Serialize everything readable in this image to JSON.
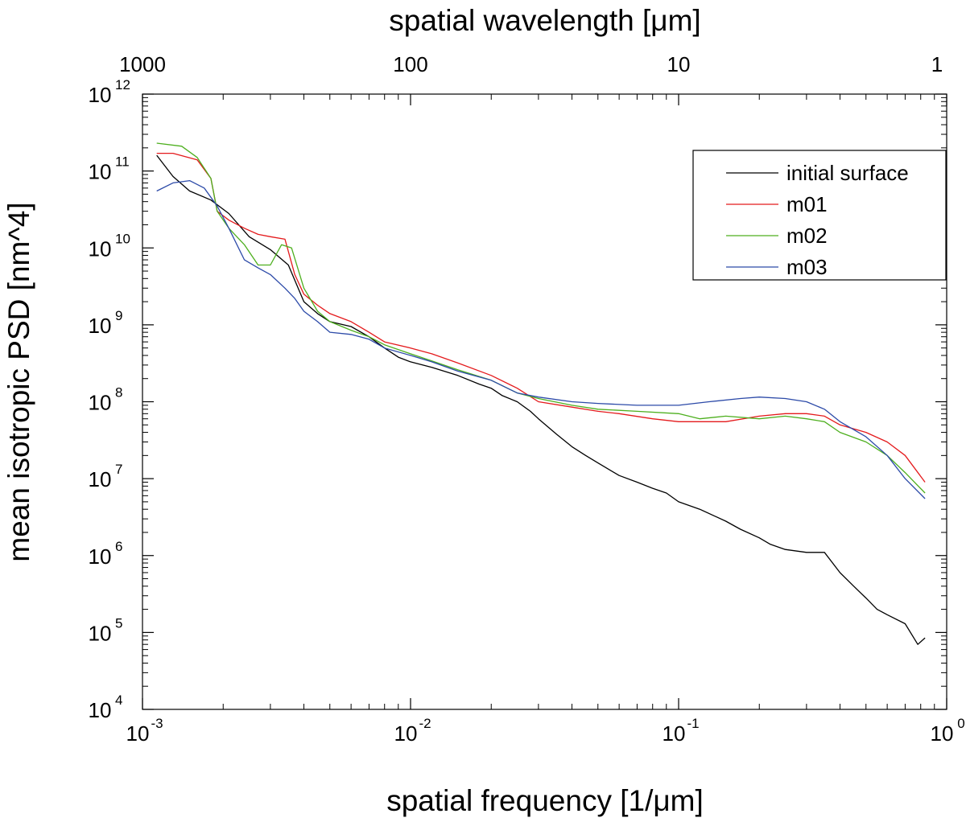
{
  "chart_data": {
    "type": "line",
    "xscale": "log",
    "yscale": "log",
    "xlabel": "spatial frequency [1/μm]",
    "ylabel": "mean isotropic PSD [nm^4]",
    "top_xlabel": "spatial wavelength [μm]",
    "xlim": [
      0.001,
      1
    ],
    "ylim": [
      10000,
      1000000000000
    ],
    "x_ticks": [
      {
        "value": 0.001,
        "base": "10",
        "exp": "-3"
      },
      {
        "value": 0.01,
        "base": "10",
        "exp": "-2"
      },
      {
        "value": 0.1,
        "base": "10",
        "exp": "-1"
      },
      {
        "value": 1,
        "base": "10",
        "exp": "0"
      }
    ],
    "y_ticks": [
      {
        "value": 10000,
        "base": "10",
        "exp": "4"
      },
      {
        "value": 100000,
        "base": "10",
        "exp": "5"
      },
      {
        "value": 1000000,
        "base": "10",
        "exp": "6"
      },
      {
        "value": 10000000,
        "base": "10",
        "exp": "7"
      },
      {
        "value": 100000000,
        "base": "10",
        "exp": "8"
      },
      {
        "value": 1000000000,
        "base": "10",
        "exp": "9"
      },
      {
        "value": 10000000000,
        "base": "10",
        "exp": "10"
      },
      {
        "value": 100000000000,
        "base": "10",
        "exp": "11"
      },
      {
        "value": 1000000000000,
        "base": "10",
        "exp": "12"
      }
    ],
    "top_ticks": [
      {
        "value": 0.001,
        "label": "1000"
      },
      {
        "value": 0.01,
        "label": "100"
      },
      {
        "value": 0.1,
        "label": "10"
      },
      {
        "value": 1,
        "label": "1"
      }
    ],
    "legend_position": "top-right",
    "series": [
      {
        "name": "initial surface",
        "color": "#000000",
        "x": [
          0.00113,
          0.0013,
          0.0015,
          0.0018,
          0.0021,
          0.0025,
          0.003,
          0.0035,
          0.004,
          0.0045,
          0.005,
          0.006,
          0.007,
          0.008,
          0.009,
          0.01,
          0.012,
          0.015,
          0.018,
          0.02,
          0.022,
          0.025,
          0.028,
          0.03,
          0.035,
          0.04,
          0.045,
          0.05,
          0.06,
          0.07,
          0.08,
          0.09,
          0.1,
          0.12,
          0.15,
          0.17,
          0.2,
          0.22,
          0.25,
          0.3,
          0.35,
          0.4,
          0.45,
          0.5,
          0.55,
          0.6,
          0.7,
          0.78,
          0.83
        ],
        "values": [
          160000000000,
          85000000000,
          55000000000,
          42000000000,
          28000000000,
          14000000000,
          9500000000,
          6000000000,
          2000000000,
          1400000000,
          1100000000,
          950000000,
          700000000,
          500000000,
          380000000,
          330000000,
          280000000,
          220000000,
          170000000,
          150000000,
          120000000,
          100000000,
          75000000,
          60000000,
          38000000,
          26000000,
          20000000,
          16000000,
          11000000,
          9000000,
          7500000,
          6500000,
          5000000,
          4000000,
          2800000,
          2200000,
          1700000,
          1400000,
          1200000,
          1100000,
          1100000,
          600000,
          400000,
          280000,
          200000,
          170000,
          130000,
          70000,
          85000
        ]
      },
      {
        "name": "m01",
        "color": "#e41a1c",
        "x": [
          0.00113,
          0.0013,
          0.0016,
          0.0018,
          0.0019,
          0.0021,
          0.0024,
          0.0027,
          0.003,
          0.0034,
          0.0037,
          0.004,
          0.0045,
          0.005,
          0.006,
          0.007,
          0.008,
          0.01,
          0.012,
          0.015,
          0.02,
          0.025,
          0.03,
          0.04,
          0.05,
          0.06,
          0.08,
          0.1,
          0.12,
          0.15,
          0.2,
          0.25,
          0.3,
          0.35,
          0.4,
          0.5,
          0.6,
          0.7,
          0.83
        ],
        "values": [
          170000000000,
          170000000000,
          140000000000,
          80000000000,
          30000000000,
          23000000000,
          18000000000,
          15000000000,
          14000000000,
          13000000000,
          4500000000,
          2500000000,
          1800000000,
          1400000000,
          1100000000,
          800000000,
          600000000,
          500000000,
          420000000,
          320000000,
          220000000,
          150000000,
          100000000,
          85000000,
          75000000,
          70000000,
          60000000,
          55000000,
          55000000,
          55000000,
          65000000,
          70000000,
          70000000,
          65000000,
          50000000,
          40000000,
          30000000,
          20000000,
          9000000
        ]
      },
      {
        "name": "m02",
        "color": "#4daf1e",
        "x": [
          0.00113,
          0.0014,
          0.0016,
          0.0018,
          0.0019,
          0.0021,
          0.0024,
          0.0027,
          0.003,
          0.0033,
          0.0036,
          0.004,
          0.0045,
          0.005,
          0.006,
          0.007,
          0.008,
          0.01,
          0.012,
          0.015,
          0.02,
          0.025,
          0.03,
          0.04,
          0.05,
          0.07,
          0.1,
          0.12,
          0.15,
          0.2,
          0.25,
          0.3,
          0.35,
          0.4,
          0.5,
          0.6,
          0.7,
          0.83
        ],
        "values": [
          230000000000,
          210000000000,
          150000000000,
          80000000000,
          30000000000,
          18000000000,
          11000000000,
          6000000000,
          6000000000,
          11000000000,
          10000000000,
          3000000000,
          1500000000,
          1100000000,
          850000000,
          700000000,
          550000000,
          420000000,
          340000000,
          260000000,
          190000000,
          130000000,
          110000000,
          90000000,
          80000000,
          75000000,
          70000000,
          60000000,
          65000000,
          60000000,
          65000000,
          60000000,
          55000000,
          40000000,
          30000000,
          20000000,
          12000000,
          6500000
        ]
      },
      {
        "name": "m03",
        "color": "#2c4aa8",
        "x": [
          0.00113,
          0.0013,
          0.0015,
          0.0017,
          0.0019,
          0.0021,
          0.0024,
          0.0027,
          0.003,
          0.0034,
          0.0037,
          0.004,
          0.0045,
          0.005,
          0.006,
          0.007,
          0.008,
          0.01,
          0.012,
          0.015,
          0.02,
          0.025,
          0.03,
          0.04,
          0.05,
          0.07,
          0.1,
          0.13,
          0.17,
          0.2,
          0.25,
          0.3,
          0.35,
          0.4,
          0.5,
          0.6,
          0.7,
          0.83
        ],
        "values": [
          55000000000,
          70000000000,
          75000000000,
          60000000000,
          35000000000,
          18000000000,
          7000000000,
          5500000000,
          4500000000,
          3000000000,
          2200000000,
          1500000000,
          1100000000,
          800000000,
          750000000,
          650000000,
          500000000,
          400000000,
          330000000,
          250000000,
          190000000,
          130000000,
          115000000,
          100000000,
          95000000,
          90000000,
          90000000,
          100000000,
          110000000,
          115000000,
          110000000,
          100000000,
          80000000,
          55000000,
          35000000,
          20000000,
          10000000,
          5500000
        ]
      }
    ]
  }
}
